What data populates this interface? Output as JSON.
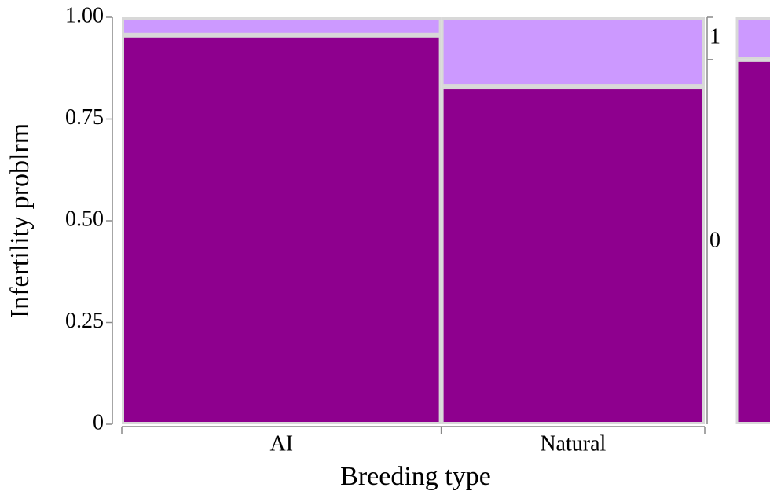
{
  "chart_data": {
    "type": "mosaic",
    "x_label": "Breeding type",
    "y_label": "Infertility problrm",
    "categories": [
      "AI",
      "Natural"
    ],
    "category_shares": [
      0.548,
      0.452
    ],
    "series": [
      {
        "name": "0",
        "color": "#8e008e",
        "values": [
          0.956,
          0.83
        ],
        "overall": 0.896
      },
      {
        "name": "1",
        "color": "#cc99ff",
        "values": [
          0.044,
          0.17
        ],
        "overall": 0.104
      }
    ],
    "ylim": [
      0,
      1
    ],
    "yticks": [
      0,
      0.25,
      {
        "value": 0.5,
        "label": "0.50"
      },
      0.75,
      {
        "value": 1,
        "label": "1.00"
      }
    ]
  }
}
